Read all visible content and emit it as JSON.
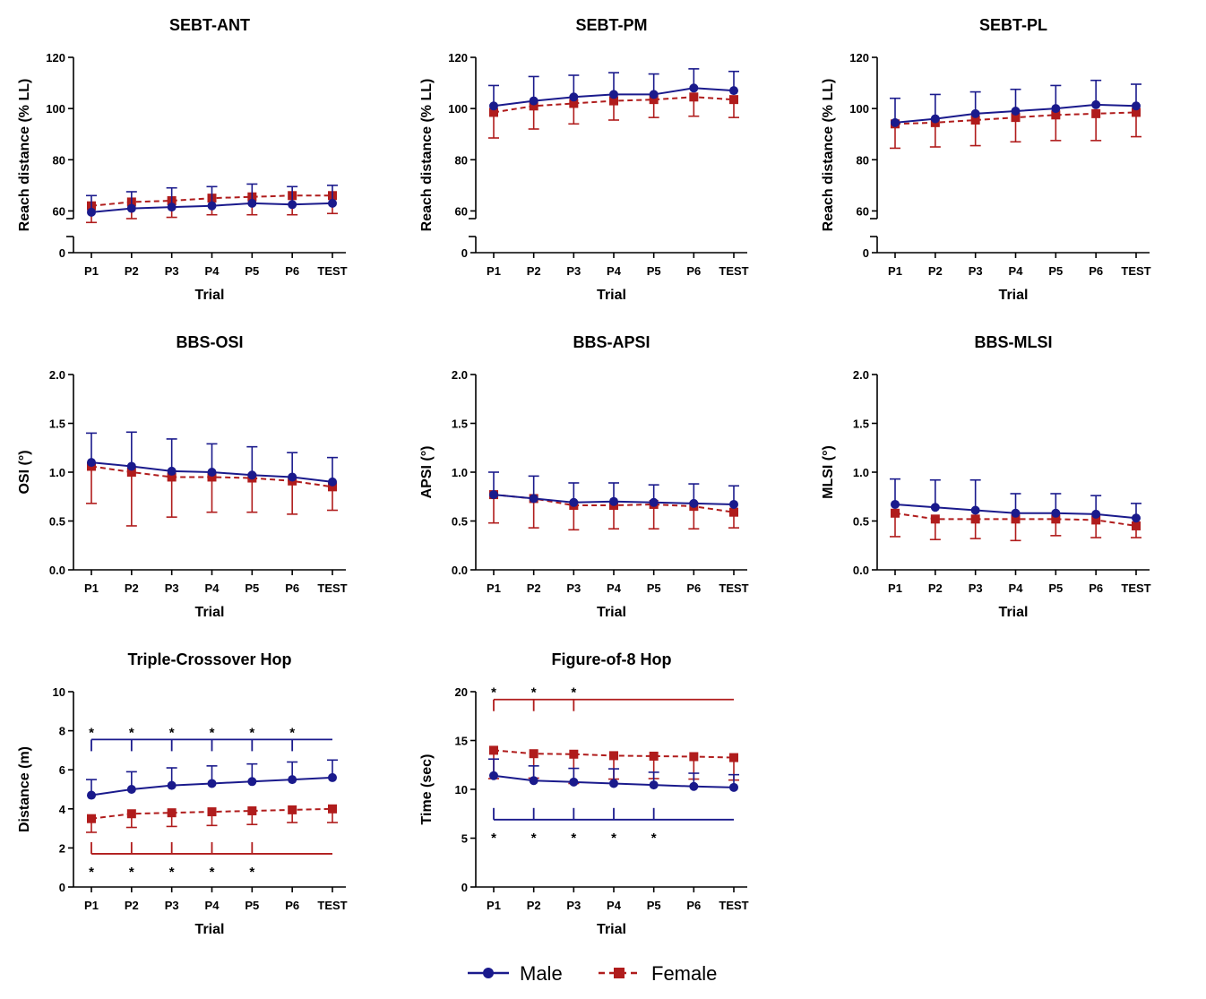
{
  "colors": {
    "male": "#1a1a8c",
    "female": "#b01c1c",
    "axis": "#000000"
  },
  "legend": [
    {
      "name": "Male",
      "color": "#1a1a8c",
      "marker": "circle",
      "dash": "solid"
    },
    {
      "name": "Female",
      "color": "#b01c1c",
      "marker": "square",
      "dash": "dashed"
    }
  ],
  "chart_data": [
    {
      "type": "line",
      "title": "SEBT-ANT",
      "xlabel": "Trial",
      "ylabel": "Reach distance (% LL)",
      "categories": [
        "P1",
        "P2",
        "P3",
        "P4",
        "P5",
        "P6",
        "TEST"
      ],
      "ylim": [
        50,
        120
      ],
      "yticks": [
        "0",
        "60",
        "80",
        "100",
        "120"
      ],
      "axis_break": true,
      "series": [
        {
          "name": "Male",
          "values": [
            59.5,
            61,
            61.5,
            62,
            63,
            62.5,
            63
          ],
          "errors": [
            6.5,
            6.5,
            7.5,
            7.5,
            7.5,
            7,
            7
          ]
        },
        {
          "name": "Female",
          "values": [
            62,
            63.5,
            64,
            65,
            65.5,
            66,
            66
          ],
          "errors": [
            6.5,
            6.5,
            6.5,
            6.5,
            7,
            7.5,
            7
          ]
        }
      ]
    },
    {
      "type": "line",
      "title": "SEBT-PM",
      "xlabel": "Trial",
      "ylabel": "Reach distance (% LL)",
      "categories": [
        "P1",
        "P2",
        "P3",
        "P4",
        "P5",
        "P6",
        "TEST"
      ],
      "ylim": [
        50,
        120
      ],
      "yticks": [
        "0",
        "60",
        "80",
        "100",
        "120"
      ],
      "axis_break": true,
      "series": [
        {
          "name": "Male",
          "values": [
            101,
            103,
            104.5,
            105.5,
            105.5,
            108,
            107
          ],
          "errors": [
            8,
            9.5,
            8.5,
            8.5,
            8,
            7.5,
            7.5
          ]
        },
        {
          "name": "Female",
          "values": [
            98.5,
            101,
            102,
            103,
            103.5,
            104.5,
            103.5
          ],
          "errors": [
            10,
            9,
            8,
            7.5,
            7,
            7.5,
            7
          ]
        }
      ]
    },
    {
      "type": "line",
      "title": "SEBT-PL",
      "xlabel": "Trial",
      "ylabel": "Reach distance (% LL)",
      "categories": [
        "P1",
        "P2",
        "P3",
        "P4",
        "P5",
        "P6",
        "TEST"
      ],
      "ylim": [
        50,
        120
      ],
      "yticks": [
        "0",
        "60",
        "80",
        "100",
        "120"
      ],
      "axis_break": true,
      "series": [
        {
          "name": "Male",
          "values": [
            94.5,
            96,
            98,
            99,
            100,
            101.5,
            101
          ],
          "errors": [
            9.5,
            9.5,
            8.5,
            8.5,
            9,
            9.5,
            8.5
          ]
        },
        {
          "name": "Female",
          "values": [
            94,
            94.5,
            95.5,
            96.5,
            97.5,
            98,
            98.5
          ],
          "errors": [
            9.5,
            9.5,
            10,
            9.5,
            10,
            10.5,
            9.5
          ]
        }
      ]
    },
    {
      "type": "line",
      "title": "BBS-OSI",
      "xlabel": "Trial",
      "ylabel": "OSI (°)",
      "categories": [
        "P1",
        "P2",
        "P3",
        "P4",
        "P5",
        "P6",
        "TEST"
      ],
      "ylim": [
        0,
        2
      ],
      "yticks": [
        "0.0",
        "0.5",
        "1.0",
        "1.5",
        "2.0"
      ],
      "series": [
        {
          "name": "Male",
          "values": [
            1.1,
            1.06,
            1.01,
            1.0,
            0.97,
            0.95,
            0.9
          ],
          "errors": [
            0.3,
            0.35,
            0.33,
            0.29,
            0.29,
            0.25,
            0.25
          ]
        },
        {
          "name": "Female",
          "values": [
            1.06,
            1.0,
            0.95,
            0.95,
            0.94,
            0.91,
            0.85
          ],
          "errors": [
            0.38,
            0.55,
            0.41,
            0.36,
            0.35,
            0.34,
            0.24
          ]
        }
      ]
    },
    {
      "type": "line",
      "title": "BBS-APSI",
      "xlabel": "Trial",
      "ylabel": "APSI (°)",
      "categories": [
        "P1",
        "P2",
        "P3",
        "P4",
        "P5",
        "P6",
        "TEST"
      ],
      "ylim": [
        0,
        2
      ],
      "yticks": [
        "0.0",
        "0.5",
        "1.0",
        "1.5",
        "2.0"
      ],
      "series": [
        {
          "name": "Male",
          "values": [
            0.77,
            0.73,
            0.69,
            0.7,
            0.69,
            0.68,
            0.67
          ],
          "errors": [
            0.23,
            0.23,
            0.2,
            0.19,
            0.18,
            0.2,
            0.19
          ]
        },
        {
          "name": "Female",
          "values": [
            0.77,
            0.73,
            0.66,
            0.66,
            0.67,
            0.65,
            0.59
          ],
          "errors": [
            0.29,
            0.3,
            0.25,
            0.24,
            0.25,
            0.23,
            0.16
          ]
        }
      ]
    },
    {
      "type": "line",
      "title": "BBS-MLSI",
      "xlabel": "Trial",
      "ylabel": "MLSI (°)",
      "categories": [
        "P1",
        "P2",
        "P3",
        "P4",
        "P5",
        "P6",
        "TEST"
      ],
      "ylim": [
        0,
        2
      ],
      "yticks": [
        "0.0",
        "0.5",
        "1.0",
        "1.5",
        "2.0"
      ],
      "series": [
        {
          "name": "Male",
          "values": [
            0.67,
            0.64,
            0.61,
            0.58,
            0.58,
            0.57,
            0.53
          ],
          "errors": [
            0.26,
            0.28,
            0.31,
            0.2,
            0.2,
            0.19,
            0.15
          ]
        },
        {
          "name": "Female",
          "values": [
            0.58,
            0.52,
            0.52,
            0.52,
            0.52,
            0.51,
            0.45
          ],
          "errors": [
            0.24,
            0.21,
            0.2,
            0.22,
            0.17,
            0.18,
            0.12
          ]
        }
      ]
    },
    {
      "type": "line",
      "title": "Triple-Crossover Hop",
      "xlabel": "Trial",
      "ylabel": "Distance (m)",
      "categories": [
        "P1",
        "P2",
        "P3",
        "P4",
        "P5",
        "P6",
        "TEST"
      ],
      "ylim": [
        0,
        10
      ],
      "yticks": [
        "0",
        "2",
        "4",
        "6",
        "8",
        "10"
      ],
      "series": [
        {
          "name": "Male",
          "values": [
            4.7,
            5.0,
            5.2,
            5.3,
            5.4,
            5.5,
            5.6
          ],
          "errors": [
            0.8,
            0.9,
            0.9,
            0.9,
            0.9,
            0.9,
            0.9
          ]
        },
        {
          "name": "Female",
          "values": [
            3.5,
            3.75,
            3.8,
            3.85,
            3.9,
            3.95,
            4.0
          ],
          "errors": [
            0.7,
            0.7,
            0.7,
            0.7,
            0.7,
            0.65,
            0.7
          ]
        }
      ],
      "annotations": [
        {
          "series": "Male",
          "y": 7.55,
          "side": "above",
          "marks": [
            "P1",
            "P2",
            "P3",
            "P4",
            "P5",
            "P6"
          ],
          "label": "*"
        },
        {
          "series": "Female",
          "y": 1.7,
          "side": "below",
          "marks": [
            "P1",
            "P2",
            "P3",
            "P4",
            "P5"
          ],
          "label": "*"
        }
      ]
    },
    {
      "type": "line",
      "title": "Figure-of-8 Hop",
      "xlabel": "Trial",
      "ylabel": "Time (sec)",
      "categories": [
        "P1",
        "P2",
        "P3",
        "P4",
        "P5",
        "P6",
        "TEST"
      ],
      "ylim": [
        0,
        20
      ],
      "yticks": [
        "0",
        "5",
        "10",
        "15",
        "20"
      ],
      "series": [
        {
          "name": "Male",
          "values": [
            11.4,
            10.9,
            10.75,
            10.6,
            10.45,
            10.3,
            10.2
          ],
          "errors": [
            1.7,
            1.5,
            1.4,
            1.5,
            1.3,
            1.35,
            1.3
          ]
        },
        {
          "name": "Female",
          "values": [
            14.0,
            13.65,
            13.6,
            13.45,
            13.4,
            13.35,
            13.25
          ],
          "errors": [
            2.9,
            2.5,
            3.0,
            2.4,
            2.3,
            2.3,
            2.3
          ]
        }
      ],
      "annotations": [
        {
          "series": "Female",
          "y": 19.2,
          "side": "above",
          "marks": [
            "P1",
            "P2",
            "P3"
          ],
          "label": "*"
        },
        {
          "series": "Male",
          "y": 6.9,
          "side": "below",
          "marks": [
            "P1",
            "P2",
            "P3",
            "P4",
            "P5"
          ],
          "label": "*"
        }
      ]
    }
  ]
}
